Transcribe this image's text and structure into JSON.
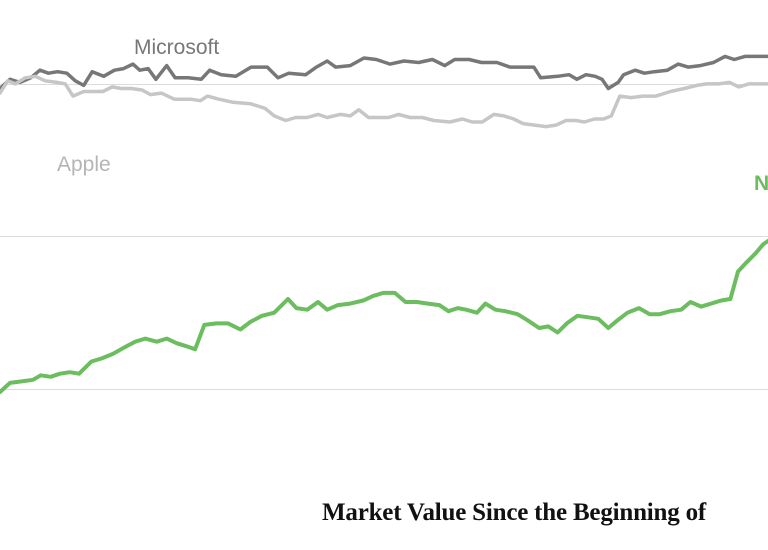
{
  "title": "Market Value Since the Beginning of",
  "chart_data": {
    "type": "line",
    "title": "Market Value Since the Beginning of",
    "grid": true,
    "gridlines_y": [
      2.75,
      1.75,
      0.75
    ],
    "ylim": [
      0.35,
      3.3
    ],
    "xlim": [
      0,
      100
    ],
    "series": [
      {
        "name": "Microsoft",
        "color": "#777777",
        "points": [
          [
            0,
            2.72
          ],
          [
            1.3,
            2.78
          ],
          [
            2.6,
            2.76
          ],
          [
            4,
            2.79
          ],
          [
            5.2,
            2.84
          ],
          [
            6.3,
            2.82
          ],
          [
            7.5,
            2.83
          ],
          [
            8.7,
            2.82
          ],
          [
            9.8,
            2.77
          ],
          [
            10.9,
            2.74
          ],
          [
            12,
            2.83
          ],
          [
            13.5,
            2.8
          ],
          [
            14.9,
            2.84
          ],
          [
            16.1,
            2.85
          ],
          [
            17.3,
            2.88
          ],
          [
            18.2,
            2.84
          ],
          [
            19.3,
            2.85
          ],
          [
            20.3,
            2.78
          ],
          [
            21.7,
            2.87
          ],
          [
            22.8,
            2.79
          ],
          [
            24.5,
            2.79
          ],
          [
            26.2,
            2.78
          ],
          [
            27.3,
            2.84
          ],
          [
            28.8,
            2.81
          ],
          [
            30.7,
            2.8
          ],
          [
            32.7,
            2.86
          ],
          [
            34.8,
            2.86
          ],
          [
            36.2,
            2.79
          ],
          [
            37.6,
            2.82
          ],
          [
            39.8,
            2.81
          ],
          [
            41.2,
            2.86
          ],
          [
            42.6,
            2.9
          ],
          [
            43.7,
            2.86
          ],
          [
            45.6,
            2.87
          ],
          [
            47.4,
            2.92
          ],
          [
            49,
            2.91
          ],
          [
            50.8,
            2.88
          ],
          [
            52.6,
            2.9
          ],
          [
            54.5,
            2.89
          ],
          [
            56.3,
            2.91
          ],
          [
            57.9,
            2.87
          ],
          [
            59.2,
            2.91
          ],
          [
            61.1,
            2.91
          ],
          [
            62.7,
            2.89
          ],
          [
            64.7,
            2.89
          ],
          [
            66.4,
            2.86
          ],
          [
            67.9,
            2.86
          ],
          [
            69.5,
            2.86
          ],
          [
            70.4,
            2.79
          ],
          [
            72.6,
            2.8
          ],
          [
            74.1,
            2.81
          ],
          [
            75.1,
            2.78
          ],
          [
            76.3,
            2.81
          ],
          [
            77.5,
            2.8
          ],
          [
            78.4,
            2.78
          ],
          [
            79.2,
            2.72
          ],
          [
            80.5,
            2.76
          ],
          [
            81.2,
            2.81
          ],
          [
            82.7,
            2.84
          ],
          [
            83.9,
            2.82
          ],
          [
            85.2,
            2.83
          ],
          [
            86.9,
            2.84
          ],
          [
            88.3,
            2.88
          ],
          [
            89.6,
            2.86
          ],
          [
            91.2,
            2.87
          ],
          [
            92.9,
            2.89
          ],
          [
            94.4,
            2.93
          ],
          [
            95.6,
            2.91
          ],
          [
            97,
            2.93
          ],
          [
            98.6,
            2.93
          ],
          [
            100,
            2.93
          ]
        ]
      },
      {
        "name": "Apple",
        "color": "#c6c6c6",
        "points": [
          [
            0,
            2.69
          ],
          [
            1,
            2.77
          ],
          [
            2,
            2.75
          ],
          [
            3.3,
            2.79
          ],
          [
            4.6,
            2.8
          ],
          [
            5.9,
            2.77
          ],
          [
            7.4,
            2.76
          ],
          [
            8.5,
            2.75
          ],
          [
            9.5,
            2.67
          ],
          [
            10.9,
            2.7
          ],
          [
            12.2,
            2.7
          ],
          [
            13.4,
            2.7
          ],
          [
            14.6,
            2.73
          ],
          [
            15.8,
            2.72
          ],
          [
            17.1,
            2.72
          ],
          [
            18.5,
            2.71
          ],
          [
            19.6,
            2.68
          ],
          [
            21,
            2.69
          ],
          [
            22.7,
            2.65
          ],
          [
            24.8,
            2.65
          ],
          [
            26.1,
            2.64
          ],
          [
            27,
            2.67
          ],
          [
            28.5,
            2.65
          ],
          [
            30.3,
            2.63
          ],
          [
            32.6,
            2.62
          ],
          [
            34.5,
            2.59
          ],
          [
            35.7,
            2.54
          ],
          [
            37.2,
            2.51
          ],
          [
            38.5,
            2.53
          ],
          [
            40,
            2.53
          ],
          [
            41.4,
            2.55
          ],
          [
            42.6,
            2.53
          ],
          [
            44.3,
            2.55
          ],
          [
            45.6,
            2.54
          ],
          [
            46.7,
            2.58
          ],
          [
            48,
            2.53
          ],
          [
            49.3,
            2.53
          ],
          [
            50.6,
            2.53
          ],
          [
            51.9,
            2.55
          ],
          [
            53.4,
            2.53
          ],
          [
            55,
            2.53
          ],
          [
            56.5,
            2.51
          ],
          [
            58.6,
            2.5
          ],
          [
            60.2,
            2.52
          ],
          [
            61.5,
            2.5
          ],
          [
            62.8,
            2.5
          ],
          [
            64.3,
            2.55
          ],
          [
            65.6,
            2.54
          ],
          [
            66.9,
            2.52
          ],
          [
            68.1,
            2.49
          ],
          [
            69.6,
            2.48
          ],
          [
            71.1,
            2.47
          ],
          [
            72.4,
            2.48
          ],
          [
            73.7,
            2.51
          ],
          [
            75,
            2.51
          ],
          [
            76.1,
            2.5
          ],
          [
            77.4,
            2.52
          ],
          [
            78.6,
            2.52
          ],
          [
            79.6,
            2.54
          ],
          [
            80.7,
            2.67
          ],
          [
            82.2,
            2.66
          ],
          [
            83.7,
            2.67
          ],
          [
            85.4,
            2.67
          ],
          [
            87.3,
            2.7
          ],
          [
            89.1,
            2.72
          ],
          [
            90.7,
            2.74
          ],
          [
            92,
            2.75
          ],
          [
            93.6,
            2.75
          ],
          [
            95,
            2.76
          ],
          [
            96.2,
            2.73
          ],
          [
            97.5,
            2.75
          ],
          [
            99,
            2.75
          ],
          [
            100,
            2.75
          ]
        ]
      },
      {
        "name": "N",
        "color": "#6cbd5f",
        "points": [
          [
            0,
            0.73
          ],
          [
            1.3,
            0.79
          ],
          [
            2.8,
            0.8
          ],
          [
            4.3,
            0.81
          ],
          [
            5.3,
            0.84
          ],
          [
            6.6,
            0.83
          ],
          [
            7.8,
            0.85
          ],
          [
            9.1,
            0.86
          ],
          [
            10.3,
            0.85
          ],
          [
            11.9,
            0.93
          ],
          [
            13.2,
            0.95
          ],
          [
            14.7,
            0.98
          ],
          [
            16.1,
            1.02
          ],
          [
            17.6,
            1.06
          ],
          [
            18.9,
            1.08
          ],
          [
            20.4,
            1.06
          ],
          [
            21.7,
            1.08
          ],
          [
            23,
            1.05
          ],
          [
            24.3,
            1.03
          ],
          [
            25.4,
            1.01
          ],
          [
            26.6,
            1.17
          ],
          [
            28.2,
            1.18
          ],
          [
            29.7,
            1.18
          ],
          [
            31.3,
            1.14
          ],
          [
            32.6,
            1.19
          ],
          [
            34.1,
            1.23
          ],
          [
            35.7,
            1.25
          ],
          [
            37.5,
            1.34
          ],
          [
            38.6,
            1.28
          ],
          [
            40,
            1.27
          ],
          [
            41.4,
            1.32
          ],
          [
            42.6,
            1.27
          ],
          [
            44,
            1.3
          ],
          [
            45.6,
            1.31
          ],
          [
            47.3,
            1.33
          ],
          [
            48.6,
            1.36
          ],
          [
            49.9,
            1.38
          ],
          [
            51.4,
            1.38
          ],
          [
            52.8,
            1.32
          ],
          [
            54.3,
            1.32
          ],
          [
            55.7,
            1.31
          ],
          [
            57.2,
            1.3
          ],
          [
            58.4,
            1.26
          ],
          [
            59.6,
            1.28
          ],
          [
            60.7,
            1.27
          ],
          [
            62.1,
            1.25
          ],
          [
            63.2,
            1.31
          ],
          [
            64.5,
            1.27
          ],
          [
            65.8,
            1.26
          ],
          [
            67.4,
            1.24
          ],
          [
            68.7,
            1.2
          ],
          [
            70.2,
            1.15
          ],
          [
            71.4,
            1.16
          ],
          [
            72.6,
            1.12
          ],
          [
            73.8,
            1.18
          ],
          [
            75.2,
            1.23
          ],
          [
            76.6,
            1.22
          ],
          [
            77.9,
            1.21
          ],
          [
            79.2,
            1.15
          ],
          [
            80.4,
            1.2
          ],
          [
            81.7,
            1.25
          ],
          [
            83.2,
            1.28
          ],
          [
            84.6,
            1.24
          ],
          [
            85.9,
            1.24
          ],
          [
            87.3,
            1.26
          ],
          [
            88.7,
            1.27
          ],
          [
            89.9,
            1.32
          ],
          [
            91.3,
            1.29
          ],
          [
            92.6,
            1.31
          ],
          [
            93.9,
            1.33
          ],
          [
            95.1,
            1.34
          ],
          [
            96.1,
            1.52
          ],
          [
            97.2,
            1.58
          ],
          [
            98.4,
            1.64
          ],
          [
            99.4,
            1.7
          ],
          [
            100,
            1.72
          ]
        ]
      }
    ]
  },
  "labels": {
    "microsoft": "Microsoft",
    "apple": "Apple",
    "nvidia": "N"
  }
}
